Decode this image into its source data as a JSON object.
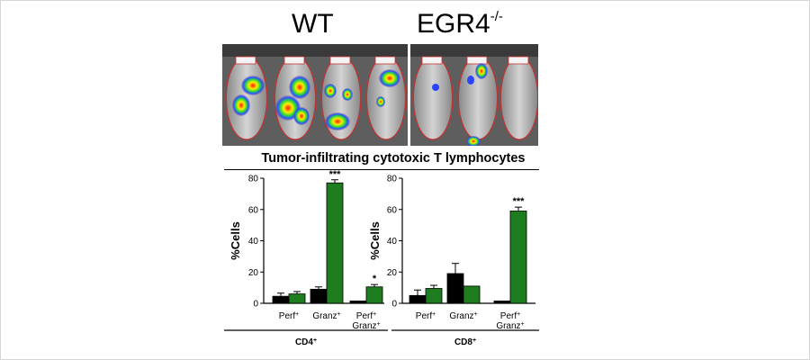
{
  "figure": {
    "condition_labels": [
      {
        "main": "WT",
        "sup": ""
      },
      {
        "main": "EGR4",
        "sup": "-/-"
      }
    ],
    "title": "Tumor-infiltrating cytotoxic T lymphocytes",
    "image_icons": [
      "mouse-bioluminescence-image"
    ]
  },
  "chart_data": [
    {
      "type": "bar",
      "title": "",
      "ylabel": "%Cells",
      "xlabel": "",
      "group_label": {
        "main": "CD4",
        "sup": "+"
      },
      "ylim": [
        0,
        80
      ],
      "yticks": [
        0,
        20,
        40,
        60,
        80
      ],
      "grid": false,
      "categories": [
        {
          "lines": [
            {
              "main": "Perf",
              "sup": "+"
            }
          ]
        },
        {
          "lines": [
            {
              "main": "Granz",
              "sup": "+"
            }
          ]
        },
        {
          "lines": [
            {
              "main": "Perf",
              "sup": "+"
            },
            {
              "main": "Granz",
              "sup": "+"
            }
          ]
        }
      ],
      "series": [
        {
          "color": "#000000",
          "values": [
            4.5,
            9,
            1.5
          ],
          "errors": [
            2,
            1.5,
            0
          ]
        },
        {
          "color": "#1e7d1e",
          "values": [
            6,
            77,
            10.5
          ],
          "errors": [
            1.5,
            2,
            1.5
          ]
        }
      ],
      "annotations": [
        {
          "category": 1,
          "series": 1,
          "text": "***"
        },
        {
          "category": 2,
          "series": 1,
          "text": "*"
        }
      ]
    },
    {
      "type": "bar",
      "title": "",
      "ylabel": "%Cells",
      "xlabel": "",
      "group_label": {
        "main": "CD8",
        "sup": "+"
      },
      "ylim": [
        0,
        80
      ],
      "yticks": [
        0,
        20,
        40,
        60,
        80
      ],
      "grid": false,
      "categories": [
        {
          "lines": [
            {
              "main": "Perf",
              "sup": "+"
            }
          ]
        },
        {
          "lines": [
            {
              "main": "Granz",
              "sup": "+"
            }
          ]
        },
        {
          "lines": [
            {
              "main": "Perf",
              "sup": "+"
            },
            {
              "main": "Granz",
              "sup": "+"
            }
          ]
        }
      ],
      "series": [
        {
          "color": "#000000",
          "values": [
            5,
            19,
            1.5
          ],
          "errors": [
            3.5,
            6.5,
            0
          ]
        },
        {
          "color": "#1e7d1e",
          "values": [
            9.5,
            11,
            59
          ],
          "errors": [
            2,
            0,
            2.5
          ]
        }
      ],
      "annotations": [
        {
          "category": 2,
          "series": 1,
          "text": "***"
        }
      ]
    }
  ]
}
